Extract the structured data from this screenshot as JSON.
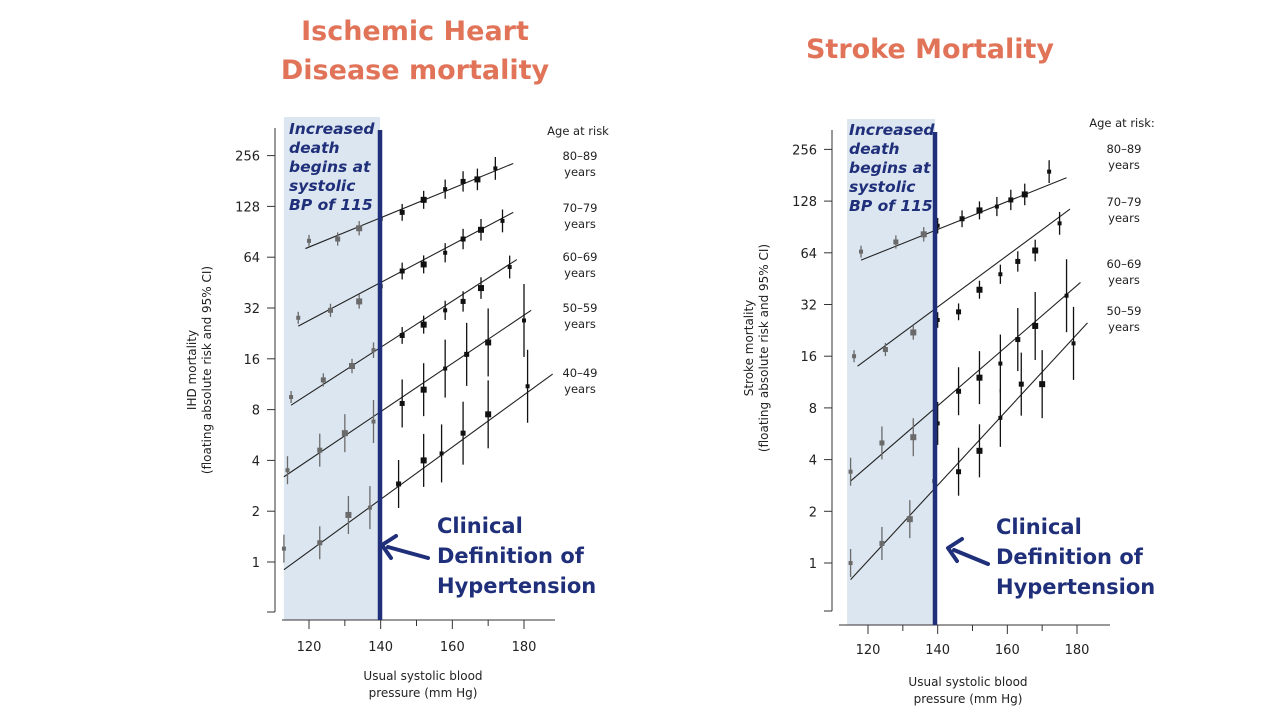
{
  "colors": {
    "title": "#e07358",
    "navy": "#1f2f7a",
    "shade": "#dce6f0",
    "ink": "#111111"
  },
  "panels": {
    "left": {
      "title": "Ischemic Heart\nDisease mortality"
    },
    "right": {
      "title": "Stroke Mortality"
    }
  },
  "chart_data": [
    {
      "type": "scatter",
      "title": "Ischemic Heart\nDisease mortality",
      "xlabel": "Usual systolic blood\npressure (mm Hg)",
      "ylabel": "IHD mortality\n(floating absolute risk and 95% CI)",
      "x_ticks": [
        "120",
        "140",
        "160",
        "180"
      ],
      "y_ticks": [
        "1",
        "2",
        "4",
        "8",
        "16",
        "32",
        "64",
        "128",
        "256"
      ],
      "y_scale": "log2",
      "legend_title": "Age at risk",
      "annotation": "Increased\ndeath\nbegins at\nsystolic\nBP of 115",
      "clinical_label": "Clinical\nDefinition of\nHypertension",
      "threshold_x": 140,
      "shaded_x_range": [
        113,
        140
      ],
      "series": [
        {
          "name": "80–89\nyears",
          "x": [
            120,
            128,
            134,
            140,
            146,
            152,
            158,
            163,
            167,
            172
          ],
          "y": [
            80,
            82,
            95,
            108,
            118,
            140,
            162,
            180,
            185,
            215
          ],
          "line": [
            [
              119,
              72
            ],
            [
              177,
              230
            ]
          ]
        },
        {
          "name": "70–79\nyears",
          "x": [
            117,
            126,
            134,
            140,
            146,
            152,
            158,
            163,
            168,
            174
          ],
          "y": [
            28,
            31,
            35,
            43,
            53,
            58,
            68,
            82,
            93,
            105
          ],
          "line": [
            [
              117,
              25
            ],
            [
              177,
              118
            ]
          ]
        },
        {
          "name": "60–69\nyears",
          "x": [
            115,
            124,
            132,
            138,
            146,
            152,
            158,
            163,
            168,
            176
          ],
          "y": [
            9.5,
            12,
            14.5,
            18,
            22,
            25.5,
            31,
            35,
            42,
            56
          ],
          "line": [
            [
              115,
              8.5
            ],
            [
              178,
              62
            ]
          ]
        },
        {
          "name": "50–59\nyears",
          "x": [
            114,
            123,
            130,
            138,
            146,
            152,
            158,
            164,
            170,
            180
          ],
          "y": [
            3.5,
            4.6,
            5.8,
            6.8,
            8.7,
            10.5,
            14,
            17,
            20,
            27
          ],
          "line": [
            [
              113,
              3.2
            ],
            [
              182,
              31
            ]
          ]
        },
        {
          "name": "40–49\nyears",
          "x": [
            113,
            123,
            131,
            137,
            145,
            152,
            157,
            163,
            170,
            181
          ],
          "y": [
            1.2,
            1.3,
            1.9,
            2.1,
            2.9,
            4,
            4.4,
            5.8,
            7.5,
            11
          ],
          "line": [
            [
              113,
              0.9
            ],
            [
              188,
              13
            ]
          ]
        }
      ]
    },
    {
      "type": "scatter",
      "title": "Stroke Mortality",
      "xlabel": "Usual systolic blood\npressure (mm Hg)",
      "ylabel": "Stroke mortality\n(floating absolute risk and 95% CI)",
      "x_ticks": [
        "120",
        "140",
        "160",
        "180"
      ],
      "y_ticks": [
        "1",
        "2",
        "4",
        "8",
        "16",
        "32",
        "64",
        "128",
        "256"
      ],
      "y_scale": "log2",
      "legend_title": "Age at risk:",
      "annotation": "Increased\ndeath\nbegins at\nsystolic\nBP of 115",
      "clinical_label": "Clinical\nDefinition of\nHypertension",
      "threshold_x": 140,
      "shaded_x_range": [
        114,
        140
      ],
      "series": [
        {
          "name": "80–89\nyears",
          "x": [
            118,
            128,
            136,
            140,
            147,
            152,
            157,
            161,
            165,
            172
          ],
          "y": [
            65,
            74,
            82,
            92,
            101,
            113,
            119,
            130,
            140,
            190
          ],
          "line": [
            [
              118,
              58
            ],
            [
              177,
              175
            ]
          ]
        },
        {
          "name": "70–79\nyears",
          "x": [
            116,
            125,
            133,
            140,
            146,
            152,
            158,
            163,
            168,
            175
          ],
          "y": [
            16,
            17.5,
            22,
            26,
            29,
            39,
            48,
            57,
            66,
            95
          ],
          "line": [
            [
              117,
              14
            ],
            [
              178,
              115
            ]
          ]
        },
        {
          "name": "60–69\nyears",
          "x": [
            115,
            124,
            133,
            140,
            146,
            152,
            158,
            163,
            168,
            177
          ],
          "y": [
            3.4,
            5,
            5.4,
            6.5,
            10,
            12,
            14.5,
            20,
            24,
            36
          ],
          "line": [
            [
              115,
              3
            ],
            [
              181,
              43
            ]
          ]
        },
        {
          "name": "50–59\nyears",
          "x": [
            115,
            124,
            132,
            139,
            146,
            152,
            158,
            164,
            170,
            179
          ],
          "y": [
            1,
            1.3,
            1.8,
            3,
            3.4,
            4.5,
            7,
            11,
            11,
            19
          ],
          "line": [
            [
              115,
              0.8
            ],
            [
              183,
              25
            ]
          ]
        }
      ]
    }
  ]
}
